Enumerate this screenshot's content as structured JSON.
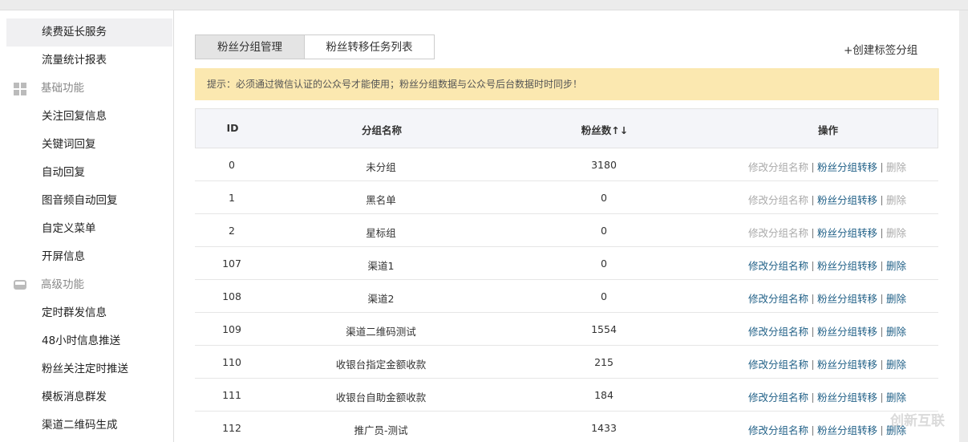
{
  "sidebar": {
    "items": [
      {
        "label": "续费延长服务",
        "kind": "item",
        "active": true
      },
      {
        "label": "流量统计报表",
        "kind": "item"
      },
      {
        "label": "基础功能",
        "kind": "section",
        "icon": "grid"
      },
      {
        "label": "关注回复信息",
        "kind": "item"
      },
      {
        "label": "关键词回复",
        "kind": "item"
      },
      {
        "label": "自动回复",
        "kind": "item"
      },
      {
        "label": "图音频自动回复",
        "kind": "item"
      },
      {
        "label": "自定义菜单",
        "kind": "item"
      },
      {
        "label": "开屏信息",
        "kind": "item"
      },
      {
        "label": "高级功能",
        "kind": "section",
        "icon": "tray"
      },
      {
        "label": "定时群发信息",
        "kind": "item"
      },
      {
        "label": "48小时信息推送",
        "kind": "item"
      },
      {
        "label": "粉丝关注定时推送",
        "kind": "item"
      },
      {
        "label": "模板消息群发",
        "kind": "item"
      },
      {
        "label": "渠道二维码生成",
        "kind": "item"
      }
    ]
  },
  "tabs": [
    {
      "label": "粉丝分组管理",
      "active": true
    },
    {
      "label": "粉丝转移任务列表"
    }
  ],
  "create_button": "+创建标签分组",
  "notice": "提示：必须通过微信认证的公众号才能使用；粉丝分组数据与公众号后台数据时时同步！",
  "table": {
    "columns": [
      "ID",
      "分组名称",
      "粉丝数↑↓",
      "操作"
    ],
    "actions": [
      "修改分组名称",
      "粉丝分组转移",
      "删除"
    ],
    "rows": [
      {
        "id": 0,
        "name": "未分组",
        "fans": 3180,
        "editable": false
      },
      {
        "id": 1,
        "name": "黑名单",
        "fans": 0,
        "editable": false
      },
      {
        "id": 2,
        "name": "星标组",
        "fans": 0,
        "editable": false
      },
      {
        "id": 107,
        "name": "渠道1",
        "fans": 0,
        "editable": true
      },
      {
        "id": 108,
        "name": "渠道2",
        "fans": 0,
        "editable": true
      },
      {
        "id": 109,
        "name": "渠道二维码测试",
        "fans": 1554,
        "editable": true
      },
      {
        "id": 110,
        "name": "收银台指定金额收款",
        "fans": 215,
        "editable": true
      },
      {
        "id": 111,
        "name": "收银台自助金额收款",
        "fans": 184,
        "editable": true
      },
      {
        "id": 112,
        "name": "推广员-测试",
        "fans": 1433,
        "editable": true
      }
    ]
  },
  "watermark": "创新互联"
}
